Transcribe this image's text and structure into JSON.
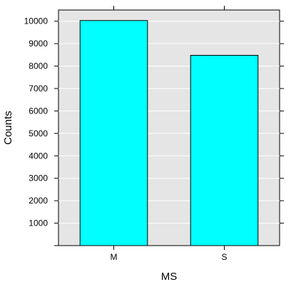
{
  "chart_data": {
    "type": "bar",
    "title": "",
    "xlabel": "MS",
    "ylabel": "Counts",
    "categories": [
      "M",
      "S"
    ],
    "values": [
      10030,
      8480
    ],
    "ylim": [
      0,
      10500
    ],
    "yticks": [
      1000,
      2000,
      3000,
      4000,
      5000,
      6000,
      7000,
      8000,
      9000,
      10000
    ],
    "grid": true,
    "legend": "none",
    "colors": {
      "bar_fill": "#00FFFF",
      "bar_stroke": "#000000",
      "panel_bg": "#E5E5E5",
      "grid": "#FFFFFF",
      "axis": "#000000"
    }
  }
}
